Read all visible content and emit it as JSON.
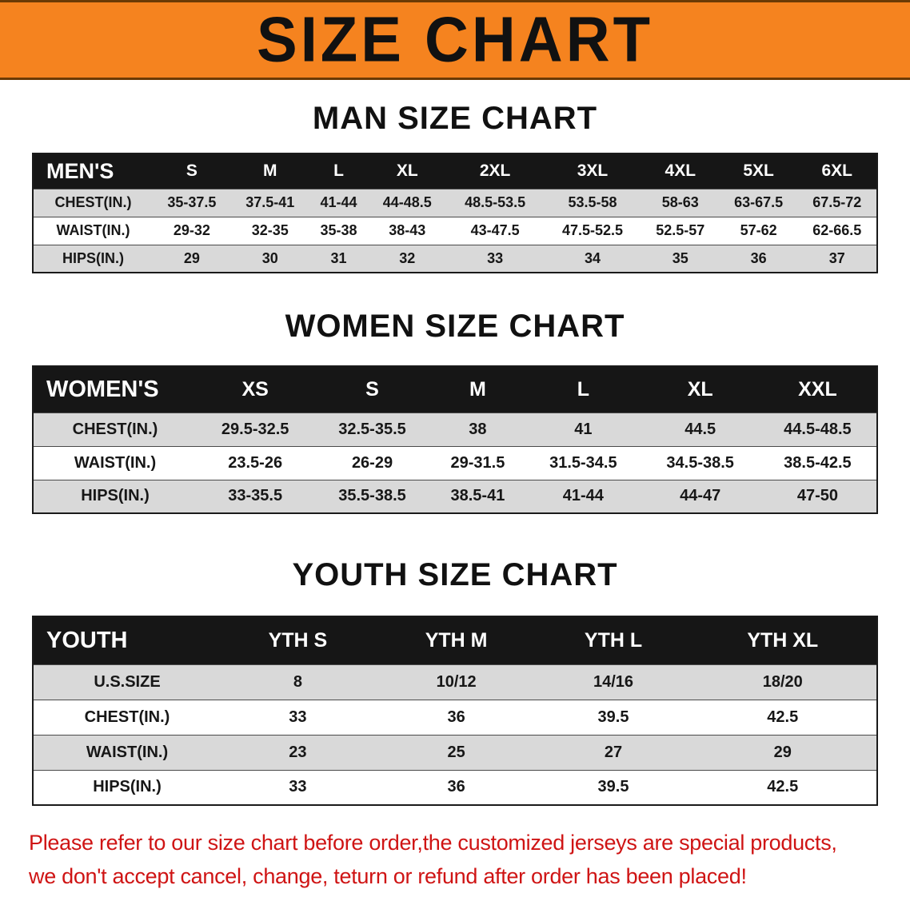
{
  "banner": {
    "title": "SIZE CHART"
  },
  "sections": [
    {
      "title": "MAN SIZE CHART",
      "table": {
        "header": [
          "MEN'S",
          "S",
          "M",
          "L",
          "XL",
          "2XL",
          "3XL",
          "4XL",
          "5XL",
          "6XL"
        ],
        "rows": [
          [
            "CHEST(IN.)",
            "35-37.5",
            "37.5-41",
            "41-44",
            "44-48.5",
            "48.5-53.5",
            "53.5-58",
            "58-63",
            "63-67.5",
            "67.5-72"
          ],
          [
            "WAIST(IN.)",
            "29-32",
            "32-35",
            "35-38",
            "38-43",
            "43-47.5",
            "47.5-52.5",
            "52.5-57",
            "57-62",
            "62-66.5"
          ],
          [
            "HIPS(IN.)",
            "29",
            "30",
            "31",
            "32",
            "33",
            "34",
            "35",
            "36",
            "37"
          ]
        ]
      }
    },
    {
      "title": "WOMEN SIZE CHART",
      "table": {
        "header": [
          "WOMEN'S",
          "XS",
          "S",
          "M",
          "L",
          "XL",
          "XXL"
        ],
        "rows": [
          [
            "CHEST(IN.)",
            "29.5-32.5",
            "32.5-35.5",
            "38",
            "41",
            "44.5",
            "44.5-48.5"
          ],
          [
            "WAIST(IN.)",
            "23.5-26",
            "26-29",
            "29-31.5",
            "31.5-34.5",
            "34.5-38.5",
            "38.5-42.5"
          ],
          [
            "HIPS(IN.)",
            "33-35.5",
            "35.5-38.5",
            "38.5-41",
            "41-44",
            "44-47",
            "47-50"
          ]
        ]
      }
    },
    {
      "title": "YOUTH SIZE CHART",
      "table": {
        "header": [
          "YOUTH",
          "YTH S",
          "YTH M",
          "YTH L",
          "YTH XL"
        ],
        "rows": [
          [
            "U.S.SIZE",
            "8",
            "10/12",
            "14/16",
            "18/20"
          ],
          [
            "CHEST(IN.)",
            "33",
            "36",
            "39.5",
            "42.5"
          ],
          [
            "WAIST(IN.)",
            "23",
            "25",
            "27",
            "29"
          ],
          [
            "HIPS(IN.)",
            "33",
            "36",
            "39.5",
            "42.5"
          ]
        ]
      }
    }
  ],
  "footer": {
    "line1": "Please refer to our size chart before order,the customized jerseys are special products,",
    "line2": "we don't accept cancel, change, teturn or refund after order has been placed!"
  },
  "colors": {
    "banner-bg": "#f5831f",
    "table-header-bg": "#161616",
    "table-header-text": "#ffffff",
    "row-gray": "#d9d9d9",
    "row-white": "#ffffff",
    "notice-red": "#cf1414",
    "text-black": "#111111"
  }
}
